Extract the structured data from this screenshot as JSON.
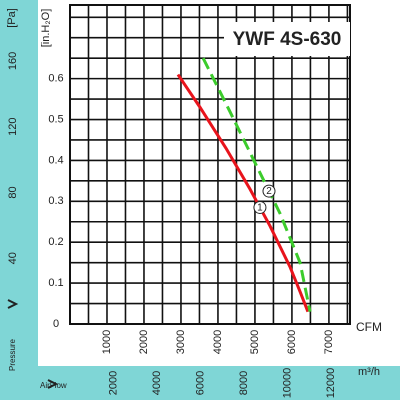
{
  "chart_data": {
    "type": "line",
    "title": "YWF 4S-630",
    "xlabel": "CFM",
    "x2label": "m³/h",
    "ylabel": "[in.H₂O]",
    "y2label": "[Pa]",
    "y2axis_name": "Pressure",
    "x2axis_name": "AirFlow",
    "xlim": [
      0,
      7570
    ],
    "xticks": [
      1000,
      2000,
      3000,
      4000,
      5000,
      6000,
      7000
    ],
    "xminor": [
      500,
      1500,
      2500,
      3500,
      4500,
      5500,
      6500,
      7500
    ],
    "x2lim": [
      0,
      12860
    ],
    "x2ticks": [
      2000,
      4000,
      6000,
      8000,
      10000,
      12000
    ],
    "ylim": [
      0,
      0.78
    ],
    "yticks": [
      0,
      0.1,
      0.2,
      0.3,
      0.4,
      0.5,
      0.6
    ],
    "yminor": [
      0.05,
      0.15,
      0.25,
      0.35,
      0.45,
      0.55,
      0.65,
      0.7,
      0.75
    ],
    "y2lim": [
      0,
      194
    ],
    "y2ticks": [
      40,
      80,
      120,
      160
    ],
    "grid": true,
    "series": [
      {
        "name": "1",
        "color": "#e8141c",
        "dashed": false,
        "x": [
          2919,
          3514,
          4216,
          4865,
          5405,
          5946,
          6216,
          6432
        ],
        "values": [
          0.61,
          0.53,
          0.43,
          0.33,
          0.24,
          0.14,
          0.08,
          0.03
        ]
      },
      {
        "name": "2",
        "color": "#3ccc2c",
        "dashed": true,
        "x": [
          3600,
          4320,
          5080,
          5680,
          6220,
          6490
        ],
        "values": [
          0.65,
          0.52,
          0.38,
          0.27,
          0.15,
          0.03
        ]
      }
    ]
  }
}
